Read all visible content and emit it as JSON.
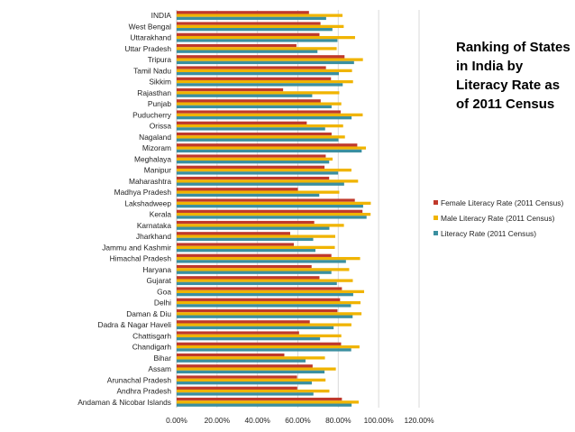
{
  "chart_data": {
    "type": "bar",
    "orientation": "horizontal",
    "title": "Ranking of States in India by Literacy Rate as of 2011 Census",
    "categories": [
      "INDIA",
      "West Bengal",
      "Uttarakhand",
      "Uttar Pradesh",
      "Tripura",
      "Tamil Nadu",
      "Sikkim",
      "Rajasthan",
      "Punjab",
      "Puducherry",
      "Orissa",
      "Nagaland",
      "Mizoram",
      "Meghalaya",
      "Manipur",
      "Maharashtra",
      "Madhya Pradesh",
      "Lakshadweep",
      "Kerala",
      "Karnataka",
      "Jharkhand",
      "Jammu and Kashmir",
      "Himachal Pradesh",
      "Haryana",
      "Gujarat",
      "Goa",
      "Delhi",
      "Daman & Diu",
      "Dadra & Nagar Haveli",
      "Chattisgarh",
      "Chandigarh",
      "Bihar",
      "Assam",
      "Arunachal Pradesh",
      "Andhra Pradesh",
      "Andaman & Nicobar Islands"
    ],
    "series": [
      {
        "name": "Female Literacy Rate (2011 Census)",
        "color": "#c0392b",
        "values": [
          65.5,
          71.2,
          70.7,
          59.3,
          83.1,
          73.9,
          76.4,
          52.7,
          71.3,
          81.2,
          64.4,
          76.7,
          89.4,
          73.8,
          73.2,
          75.5,
          60.0,
          88.2,
          91.98,
          68.1,
          56.2,
          58.0,
          76.6,
          66.8,
          70.7,
          81.8,
          80.9,
          79.6,
          65.9,
          60.6,
          81.4,
          53.3,
          67.3,
          59.6,
          59.7,
          81.8
        ]
      },
      {
        "name": "Male Literacy Rate (2011 Census)",
        "color": "#f0b400",
        "values": [
          82.1,
          82.7,
          88.3,
          79.2,
          92.2,
          86.8,
          87.3,
          80.5,
          81.5,
          92.1,
          82.4,
          83.3,
          93.7,
          77.2,
          86.5,
          89.8,
          80.5,
          96.1,
          96.0,
          82.8,
          78.5,
          78.3,
          90.8,
          85.4,
          87.2,
          92.8,
          91.0,
          91.5,
          86.5,
          81.5,
          90.5,
          73.4,
          78.8,
          73.7,
          75.6,
          90.1
        ]
      },
      {
        "name": "Literacy Rate (2011 Census)",
        "color": "#3a8fa0",
        "values": [
          74.0,
          77.1,
          79.6,
          69.7,
          87.8,
          80.3,
          82.2,
          67.1,
          76.7,
          86.6,
          73.5,
          80.1,
          91.6,
          75.5,
          79.9,
          82.9,
          70.6,
          92.3,
          94.0,
          75.6,
          67.6,
          68.7,
          83.8,
          76.6,
          79.3,
          87.4,
          86.3,
          87.1,
          77.7,
          71.0,
          86.4,
          63.8,
          73.2,
          66.9,
          67.7,
          86.6
        ]
      }
    ],
    "x_ticks": [
      "0.00%",
      "20.00%",
      "40.00%",
      "60.00%",
      "80.00%",
      "100.00%",
      "120.00%"
    ],
    "xlim": [
      0,
      120
    ],
    "xlabel": "",
    "ylabel": "",
    "grid": "vertical",
    "legend_position": "right"
  }
}
